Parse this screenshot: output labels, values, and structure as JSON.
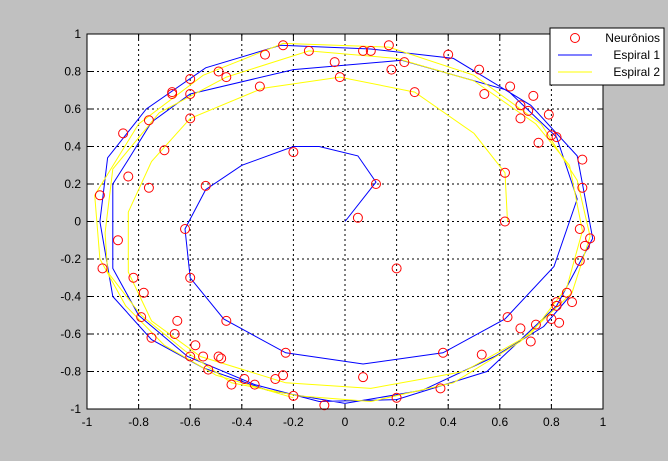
{
  "chart_data": {
    "type": "line",
    "title": "",
    "xlabel": "",
    "ylabel": "",
    "xlim": [
      -1,
      1
    ],
    "ylim": [
      -1,
      1
    ],
    "grid": true,
    "legend_placement": "top-right",
    "x_ticks": [
      -1,
      -0.8,
      -0.6,
      -0.4,
      -0.2,
      0,
      0.2,
      0.4,
      0.6,
      0.8,
      1
    ],
    "y_ticks": [
      -1,
      -0.8,
      -0.6,
      -0.4,
      -0.2,
      0,
      0.2,
      0.4,
      0.6,
      0.8,
      1
    ],
    "x_tick_labels": [
      "-1",
      "-0.8",
      "-0.6",
      "-0.4",
      "-0.2",
      "0",
      "0.2",
      "0.4",
      "0.6",
      "0.8",
      "1"
    ],
    "y_tick_labels": [
      "-1",
      "-0.8",
      "-0.6",
      "-0.4",
      "-0.2",
      "0",
      "0.2",
      "0.4",
      "0.6",
      "0.8",
      "1"
    ],
    "series": [
      {
        "name": "Neurônios",
        "kind": "scatter",
        "marker": "circle",
        "color": "#ff0000",
        "points": [
          [
            0.05,
            0.02
          ],
          [
            0.12,
            0.2
          ],
          [
            -0.2,
            0.37
          ],
          [
            -0.54,
            0.19
          ],
          [
            -0.62,
            -0.04
          ],
          [
            -0.6,
            -0.3
          ],
          [
            -0.46,
            -0.53
          ],
          [
            -0.23,
            -0.7
          ],
          [
            0.07,
            -0.83
          ],
          [
            0.2,
            -0.25
          ],
          [
            0.37,
            -0.89
          ],
          [
            0.38,
            -0.7
          ],
          [
            0.63,
            -0.51
          ],
          [
            0.62,
            0.0
          ],
          [
            0.62,
            0.26
          ],
          [
            0.27,
            0.69
          ],
          [
            -0.02,
            0.77
          ],
          [
            -0.33,
            0.72
          ],
          [
            -0.6,
            0.55
          ],
          [
            -0.7,
            0.38
          ],
          [
            -0.76,
            0.54
          ],
          [
            -0.76,
            0.18
          ],
          [
            -0.84,
            0.24
          ],
          [
            -0.88,
            -0.1
          ],
          [
            -0.82,
            -0.3
          ],
          [
            -0.78,
            -0.38
          ],
          [
            -0.79,
            -0.51
          ],
          [
            -0.75,
            -0.62
          ],
          [
            -0.66,
            -0.6
          ],
          [
            -0.65,
            -0.53
          ],
          [
            -0.6,
            -0.72
          ],
          [
            -0.58,
            -0.66
          ],
          [
            -0.55,
            -0.72
          ],
          [
            -0.53,
            -0.79
          ],
          [
            -0.49,
            -0.72
          ],
          [
            -0.48,
            -0.73
          ],
          [
            -0.44,
            -0.87
          ],
          [
            -0.39,
            -0.84
          ],
          [
            -0.35,
            -0.87
          ],
          [
            -0.27,
            -0.84
          ],
          [
            -0.24,
            -0.82
          ],
          [
            -0.2,
            -0.93
          ],
          [
            -0.08,
            -0.98
          ],
          [
            0.2,
            -0.94
          ],
          [
            0.53,
            -0.71
          ],
          [
            0.68,
            -0.57
          ],
          [
            0.72,
            -0.64
          ],
          [
            0.74,
            -0.55
          ],
          [
            0.8,
            -0.52
          ],
          [
            0.82,
            -0.45
          ],
          [
            0.82,
            -0.43
          ],
          [
            0.86,
            -0.38
          ],
          [
            0.88,
            -0.43
          ],
          [
            0.91,
            -0.21
          ],
          [
            0.93,
            -0.13
          ],
          [
            0.91,
            -0.04
          ],
          [
            0.95,
            -0.09
          ],
          [
            0.92,
            0.18
          ],
          [
            0.92,
            0.33
          ],
          [
            0.82,
            0.45
          ],
          [
            0.8,
            0.46
          ],
          [
            0.75,
            0.42
          ],
          [
            0.79,
            0.57
          ],
          [
            0.73,
            0.67
          ],
          [
            0.68,
            0.62
          ],
          [
            0.68,
            0.55
          ],
          [
            0.64,
            0.72
          ],
          [
            0.52,
            0.81
          ],
          [
            0.54,
            0.68
          ],
          [
            0.4,
            0.89
          ],
          [
            0.23,
            0.85
          ],
          [
            0.17,
            0.94
          ],
          [
            0.18,
            0.81
          ],
          [
            0.1,
            0.91
          ],
          [
            0.07,
            0.91
          ],
          [
            -0.04,
            0.85
          ],
          [
            -0.14,
            0.91
          ],
          [
            -0.24,
            0.94
          ],
          [
            -0.31,
            0.89
          ],
          [
            -0.46,
            0.77
          ],
          [
            -0.49,
            0.8
          ],
          [
            -0.6,
            0.76
          ],
          [
            -0.6,
            0.68
          ],
          [
            -0.67,
            0.68
          ],
          [
            -0.67,
            0.69
          ],
          [
            -0.86,
            0.47
          ],
          [
            -0.95,
            0.14
          ],
          [
            -0.94,
            -0.25
          ],
          [
            0.71,
            0.59
          ],
          [
            0.83,
            -0.54
          ]
        ]
      },
      {
        "name": "Espiral 1",
        "kind": "line",
        "color": "#0000ff",
        "points": [
          [
            0,
            0
          ],
          [
            0.12,
            0.21
          ],
          [
            0.05,
            0.35
          ],
          [
            -0.1,
            0.4
          ],
          [
            -0.2,
            0.4
          ],
          [
            -0.4,
            0.3
          ],
          [
            -0.54,
            0.17
          ],
          [
            -0.62,
            -0.04
          ],
          [
            -0.6,
            -0.3
          ],
          [
            -0.47,
            -0.52
          ],
          [
            -0.23,
            -0.7
          ],
          [
            0.07,
            -0.76
          ],
          [
            0.38,
            -0.7
          ],
          [
            0.62,
            -0.52
          ],
          [
            0.81,
            -0.24
          ],
          [
            0.9,
            0.12
          ],
          [
            0.82,
            0.45
          ],
          [
            0.63,
            0.7
          ],
          [
            0.22,
            0.86
          ],
          [
            -0.2,
            0.81
          ],
          [
            -0.6,
            0.68
          ],
          [
            -0.75,
            0.53
          ],
          [
            -0.84,
            0.33
          ],
          [
            -0.9,
            0.2
          ],
          [
            -0.9,
            -0.25
          ],
          [
            -0.8,
            -0.5
          ],
          [
            -0.61,
            -0.72
          ],
          [
            -0.35,
            -0.87
          ],
          [
            -0.1,
            -0.96
          ],
          [
            0.2,
            -0.95
          ],
          [
            0.55,
            -0.8
          ],
          [
            0.82,
            -0.45
          ],
          [
            0.96,
            -0.09
          ],
          [
            0.9,
            0.35
          ],
          [
            0.72,
            0.62
          ],
          [
            0.42,
            0.87
          ],
          [
            0.1,
            0.92
          ],
          [
            -0.25,
            0.94
          ],
          [
            -0.54,
            0.82
          ],
          [
            -0.77,
            0.6
          ],
          [
            -0.92,
            0.34
          ],
          [
            -0.95,
            0.0
          ],
          [
            -0.9,
            -0.4
          ],
          [
            -0.75,
            -0.63
          ],
          [
            -0.55,
            -0.78
          ],
          [
            -0.3,
            -0.9
          ],
          [
            0.0,
            -0.97
          ],
          [
            0.3,
            -0.9
          ],
          [
            0.58,
            -0.72
          ],
          [
            0.77,
            -0.56
          ],
          [
            0.87,
            -0.4
          ]
        ]
      },
      {
        "name": "Espiral 2",
        "kind": "line",
        "color": "#ffff00",
        "points": [
          [
            0.63,
            0.0
          ],
          [
            0.62,
            0.26
          ],
          [
            0.5,
            0.47
          ],
          [
            0.27,
            0.69
          ],
          [
            -0.02,
            0.77
          ],
          [
            -0.32,
            0.71
          ],
          [
            -0.6,
            0.55
          ],
          [
            -0.75,
            0.32
          ],
          [
            -0.84,
            0.05
          ],
          [
            -0.84,
            -0.27
          ],
          [
            -0.75,
            -0.53
          ],
          [
            -0.56,
            -0.72
          ],
          [
            -0.23,
            -0.86
          ],
          [
            0.1,
            -0.89
          ],
          [
            0.46,
            -0.8
          ],
          [
            0.72,
            -0.6
          ],
          [
            0.86,
            -0.35
          ],
          [
            0.92,
            -0.05
          ],
          [
            0.87,
            0.3
          ],
          [
            0.74,
            0.52
          ],
          [
            0.5,
            0.75
          ],
          [
            0.2,
            0.87
          ],
          [
            -0.14,
            0.91
          ],
          [
            -0.46,
            0.77
          ],
          [
            -0.72,
            0.58
          ],
          [
            -0.9,
            0.28
          ],
          [
            -0.93,
            -0.06
          ],
          [
            -0.92,
            -0.27
          ],
          [
            -0.79,
            -0.5
          ],
          [
            -0.62,
            -0.69
          ],
          [
            -0.44,
            -0.86
          ],
          [
            -0.18,
            -0.93
          ],
          [
            0.1,
            -0.96
          ],
          [
            0.42,
            -0.86
          ],
          [
            0.68,
            -0.64
          ],
          [
            0.88,
            -0.38
          ],
          [
            0.95,
            -0.08
          ],
          [
            0.9,
            0.22
          ],
          [
            0.76,
            0.52
          ],
          [
            0.5,
            0.78
          ],
          [
            0.17,
            0.93
          ],
          [
            -0.24,
            0.95
          ],
          [
            -0.55,
            0.78
          ],
          [
            -0.8,
            0.52
          ],
          [
            -0.97,
            0.14
          ],
          [
            -0.95,
            -0.2
          ],
          [
            -0.85,
            -0.45
          ],
          [
            -0.7,
            -0.66
          ],
          [
            -0.5,
            -0.82
          ],
          [
            -0.2,
            -0.94
          ]
        ]
      }
    ]
  }
}
